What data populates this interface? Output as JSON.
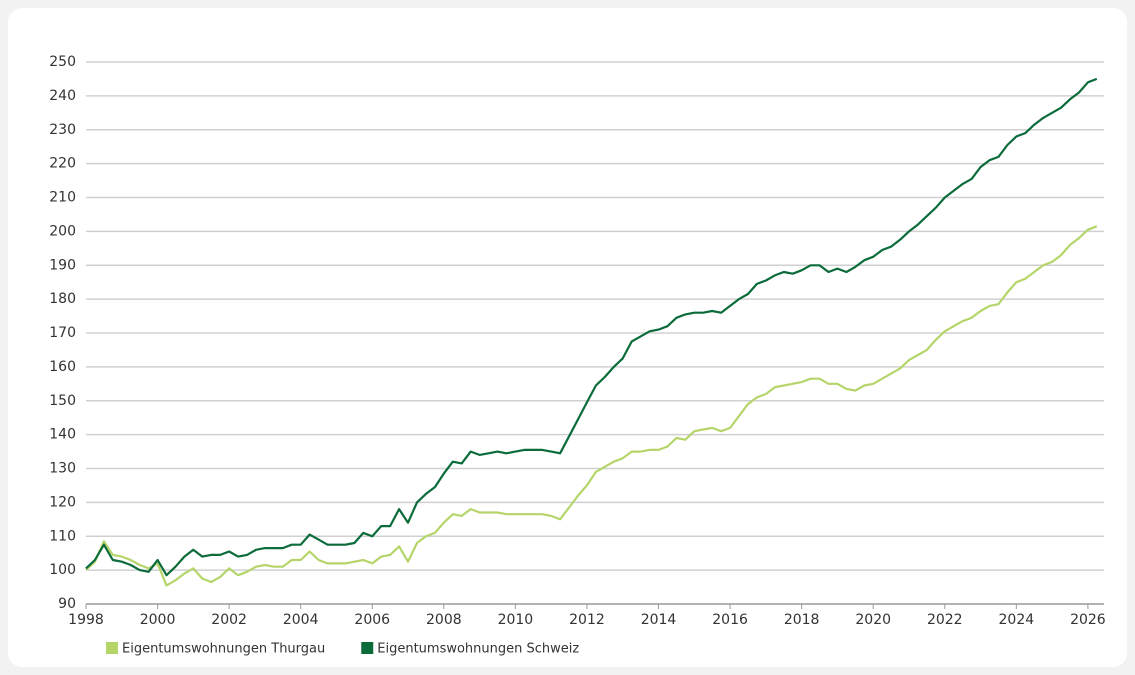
{
  "chart_data": {
    "type": "line",
    "x": [
      1998,
      1998.25,
      1998.5,
      1998.75,
      1999,
      1999.25,
      1999.5,
      1999.75,
      2000,
      2000.25,
      2000.5,
      2000.75,
      2001,
      2001.25,
      2001.5,
      2001.75,
      2002,
      2002.25,
      2002.5,
      2002.75,
      2003,
      2003.25,
      2003.5,
      2003.75,
      2004,
      2004.25,
      2004.5,
      2004.75,
      2005,
      2005.25,
      2005.5,
      2005.75,
      2006,
      2006.25,
      2006.5,
      2006.75,
      2007,
      2007.25,
      2007.5,
      2007.75,
      2008,
      2008.25,
      2008.5,
      2008.75,
      2009,
      2009.25,
      2009.5,
      2009.75,
      2010,
      2010.25,
      2010.5,
      2010.75,
      2011,
      2011.25,
      2011.5,
      2011.75,
      2012,
      2012.25,
      2012.5,
      2012.75,
      2013,
      2013.25,
      2013.5,
      2013.75,
      2014,
      2014.25,
      2014.5,
      2014.75,
      2015,
      2015.25,
      2015.5,
      2015.75,
      2016,
      2016.25,
      2016.5,
      2016.75,
      2017,
      2017.25,
      2017.5,
      2017.75,
      2018,
      2018.25,
      2018.5,
      2018.75,
      2019,
      2019.25,
      2019.5,
      2019.75,
      2020,
      2020.25,
      2020.5,
      2020.75,
      2021,
      2021.25,
      2021.5,
      2021.75,
      2022,
      2022.25,
      2022.5,
      2022.75,
      2023,
      2023.25,
      2023.5,
      2023.75,
      2024,
      2024.25,
      2024.5,
      2024.75,
      2025,
      2025.25,
      2025.5,
      2025.75,
      2026,
      2026.25
    ],
    "series": [
      {
        "name": "Eigentumswohnungen Thurgau",
        "color": "#b5d56a",
        "values": [
          100,
          102.5,
          108.5,
          104.5,
          104,
          103,
          101.5,
          100.5,
          102,
          95.5,
          97,
          99,
          100.5,
          97.5,
          96.5,
          98,
          100.5,
          98.5,
          99.5,
          101,
          101.5,
          101,
          101,
          103,
          103,
          105.5,
          103,
          102,
          102,
          102,
          102.5,
          103,
          102,
          104,
          104.5,
          107,
          102.5,
          108,
          110,
          111,
          114,
          116.5,
          116,
          118,
          117,
          117,
          117,
          116.5,
          116.5,
          116.5,
          116.5,
          116.5,
          116,
          115,
          118.5,
          122,
          125,
          129,
          130.5,
          132,
          133,
          135,
          135,
          135.5,
          135.5,
          136.5,
          139,
          138.5,
          141,
          141.5,
          142,
          141,
          142,
          145.5,
          149,
          151,
          152,
          154,
          154.5,
          155,
          155.5,
          156.5,
          156.5,
          155,
          155,
          153.5,
          153,
          154.5,
          155,
          156.5,
          158,
          159.5,
          162,
          163.5,
          165,
          168,
          170.5,
          172,
          173.5,
          174.5,
          176.5,
          178,
          178.5,
          182,
          185,
          186,
          188,
          190,
          191,
          193,
          196,
          198,
          200.5,
          201.5
        ]
      },
      {
        "name": "Eigentumswohnungen Schweiz",
        "color": "#0b6b3a",
        "values": [
          100.5,
          103,
          107.5,
          103,
          102.5,
          101.5,
          100,
          99.5,
          103,
          98.5,
          101,
          104,
          106,
          104,
          104.5,
          104.5,
          105.5,
          104,
          104.5,
          106,
          106.5,
          106.5,
          106.5,
          107.5,
          107.5,
          110.5,
          109,
          107.5,
          107.5,
          107.5,
          108,
          111,
          110,
          113,
          113,
          118,
          114,
          120,
          122.5,
          124.5,
          128.5,
          132,
          131.5,
          135,
          134,
          134.5,
          135,
          134.5,
          135,
          135.5,
          135.5,
          135.5,
          135,
          134.5,
          139.5,
          144.5,
          149.5,
          154.5,
          157,
          160,
          162.5,
          167.5,
          169,
          170.5,
          171,
          172,
          174.5,
          175.5,
          176,
          176,
          176.5,
          176,
          178,
          180,
          181.5,
          184.5,
          185.5,
          187,
          188,
          187.5,
          188.5,
          190,
          190,
          188,
          189,
          188,
          189.5,
          191.5,
          192.5,
          194.5,
          195.5,
          197.5,
          200,
          202,
          204.5,
          207,
          210,
          212,
          214,
          215.5,
          219,
          221,
          222,
          225.5,
          228,
          229,
          231.5,
          233.5,
          235,
          236.5,
          239,
          241,
          244,
          245
        ]
      }
    ],
    "xlim": [
      1998,
      2026.45
    ],
    "xticks": [
      1998,
      2000,
      2002,
      2004,
      2006,
      2008,
      2010,
      2012,
      2014,
      2016,
      2018,
      2020,
      2022,
      2024,
      2026
    ],
    "ylim": [
      90,
      250
    ],
    "yticks": [
      90,
      100,
      110,
      120,
      130,
      140,
      150,
      160,
      170,
      180,
      190,
      200,
      210,
      220,
      230,
      240,
      250
    ],
    "grid": true,
    "legend": "bottom"
  }
}
